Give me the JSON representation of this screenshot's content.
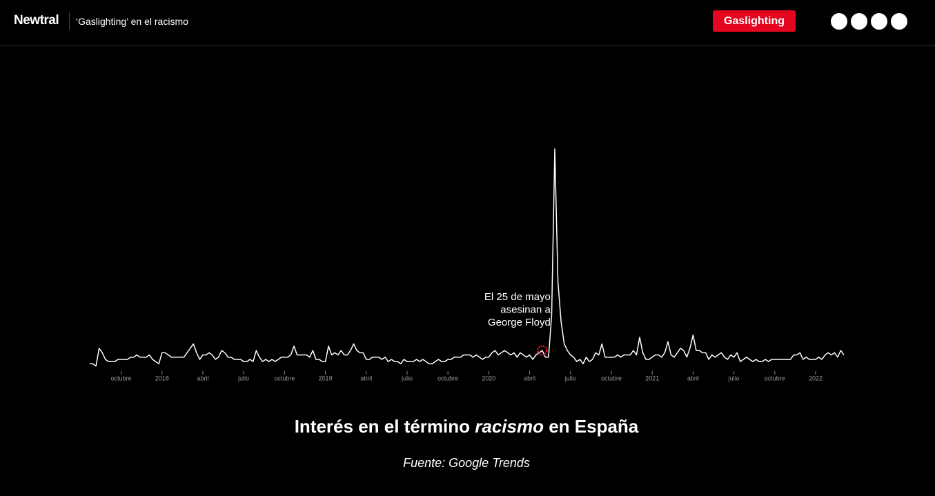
{
  "header": {
    "logo": "Newtral",
    "article": "‘Gaslighting’ en el racismo",
    "button": "Gaslighting"
  },
  "chart_data": {
    "type": "line",
    "title": {
      "before": "Interés en el término",
      "emphasis": "racismo",
      "after": "en España"
    },
    "source": "Fuente: Google Trends",
    "color": "#ffffff",
    "values": [
      3,
      3,
      2,
      10,
      8,
      5,
      4,
      4,
      4,
      5,
      5,
      5,
      5,
      6,
      6,
      7,
      6,
      6,
      6,
      7,
      5,
      4,
      3,
      8,
      8,
      7,
      6,
      6,
      6,
      6,
      6,
      8,
      10,
      12,
      8,
      5,
      7,
      7,
      8,
      7,
      5,
      6,
      9,
      8,
      6,
      6,
      5,
      5,
      5,
      4,
      4,
      5,
      4,
      9,
      6,
      4,
      5,
      4,
      5,
      4,
      5,
      6,
      6,
      6,
      7,
      11,
      7,
      7,
      7,
      7,
      6,
      9,
      5,
      5,
      4,
      4,
      11,
      7,
      8,
      7,
      9,
      7,
      7,
      9,
      12,
      9,
      8,
      8,
      5,
      5,
      6,
      6,
      6,
      5,
      6,
      4,
      5,
      4,
      4,
      3,
      5,
      4,
      4,
      4,
      5,
      4,
      5,
      4,
      3,
      3,
      4,
      5,
      4,
      4,
      5,
      5,
      6,
      6,
      6,
      7,
      7,
      7,
      6,
      7,
      6,
      5,
      6,
      6,
      8,
      9,
      7,
      8,
      9,
      8,
      7,
      8,
      6,
      8,
      7,
      6,
      7,
      5,
      7,
      8,
      9,
      6,
      6,
      25,
      100,
      40,
      22,
      12,
      9,
      7,
      6,
      4,
      5,
      3,
      6,
      4,
      5,
      8,
      7,
      12,
      6,
      6,
      6,
      6,
      7,
      6,
      7,
      7,
      7,
      9,
      7,
      15,
      8,
      5,
      5,
      6,
      7,
      7,
      6,
      8,
      13,
      7,
      6,
      8,
      10,
      9,
      6,
      10,
      16,
      9,
      9,
      8,
      8,
      5,
      7,
      6,
      7,
      8,
      6,
      5,
      7,
      6,
      8,
      4,
      5,
      6,
      5,
      4,
      5,
      4,
      4,
      5,
      4,
      5,
      5,
      5,
      5,
      5,
      5,
      5,
      7,
      7,
      8,
      5,
      6,
      5,
      5,
      5,
      6,
      5,
      7,
      8,
      7,
      8,
      6,
      9,
      7
    ],
    "xlim": [
      0,
      240
    ],
    "ylim": [
      0,
      100
    ],
    "xticks": [
      {
        "value": 10,
        "label": "octubre"
      },
      {
        "value": 23,
        "label": "2018"
      },
      {
        "value": 36,
        "label": "abril"
      },
      {
        "value": 49,
        "label": "julio"
      },
      {
        "value": 62,
        "label": "octubre"
      },
      {
        "value": 75,
        "label": "2019"
      },
      {
        "value": 88,
        "label": "abril"
      },
      {
        "value": 101,
        "label": "julio"
      },
      {
        "value": 114,
        "label": "octubre"
      },
      {
        "value": 127,
        "label": "2020"
      },
      {
        "value": 140,
        "label": "abril"
      },
      {
        "value": 153,
        "label": "julio"
      },
      {
        "value": 166,
        "label": "octubre"
      },
      {
        "value": 179,
        "label": "2021"
      },
      {
        "value": 192,
        "label": "abril"
      },
      {
        "value": 205,
        "label": "julio"
      },
      {
        "value": 218,
        "label": "octubre"
      },
      {
        "value": 231,
        "label": "2022"
      }
    ],
    "annotations": [
      {
        "x": 144,
        "text": [
          "El 25 de mayo",
          "asesinan a",
          "George Floyd"
        ],
        "color": "#e3061e"
      }
    ]
  }
}
